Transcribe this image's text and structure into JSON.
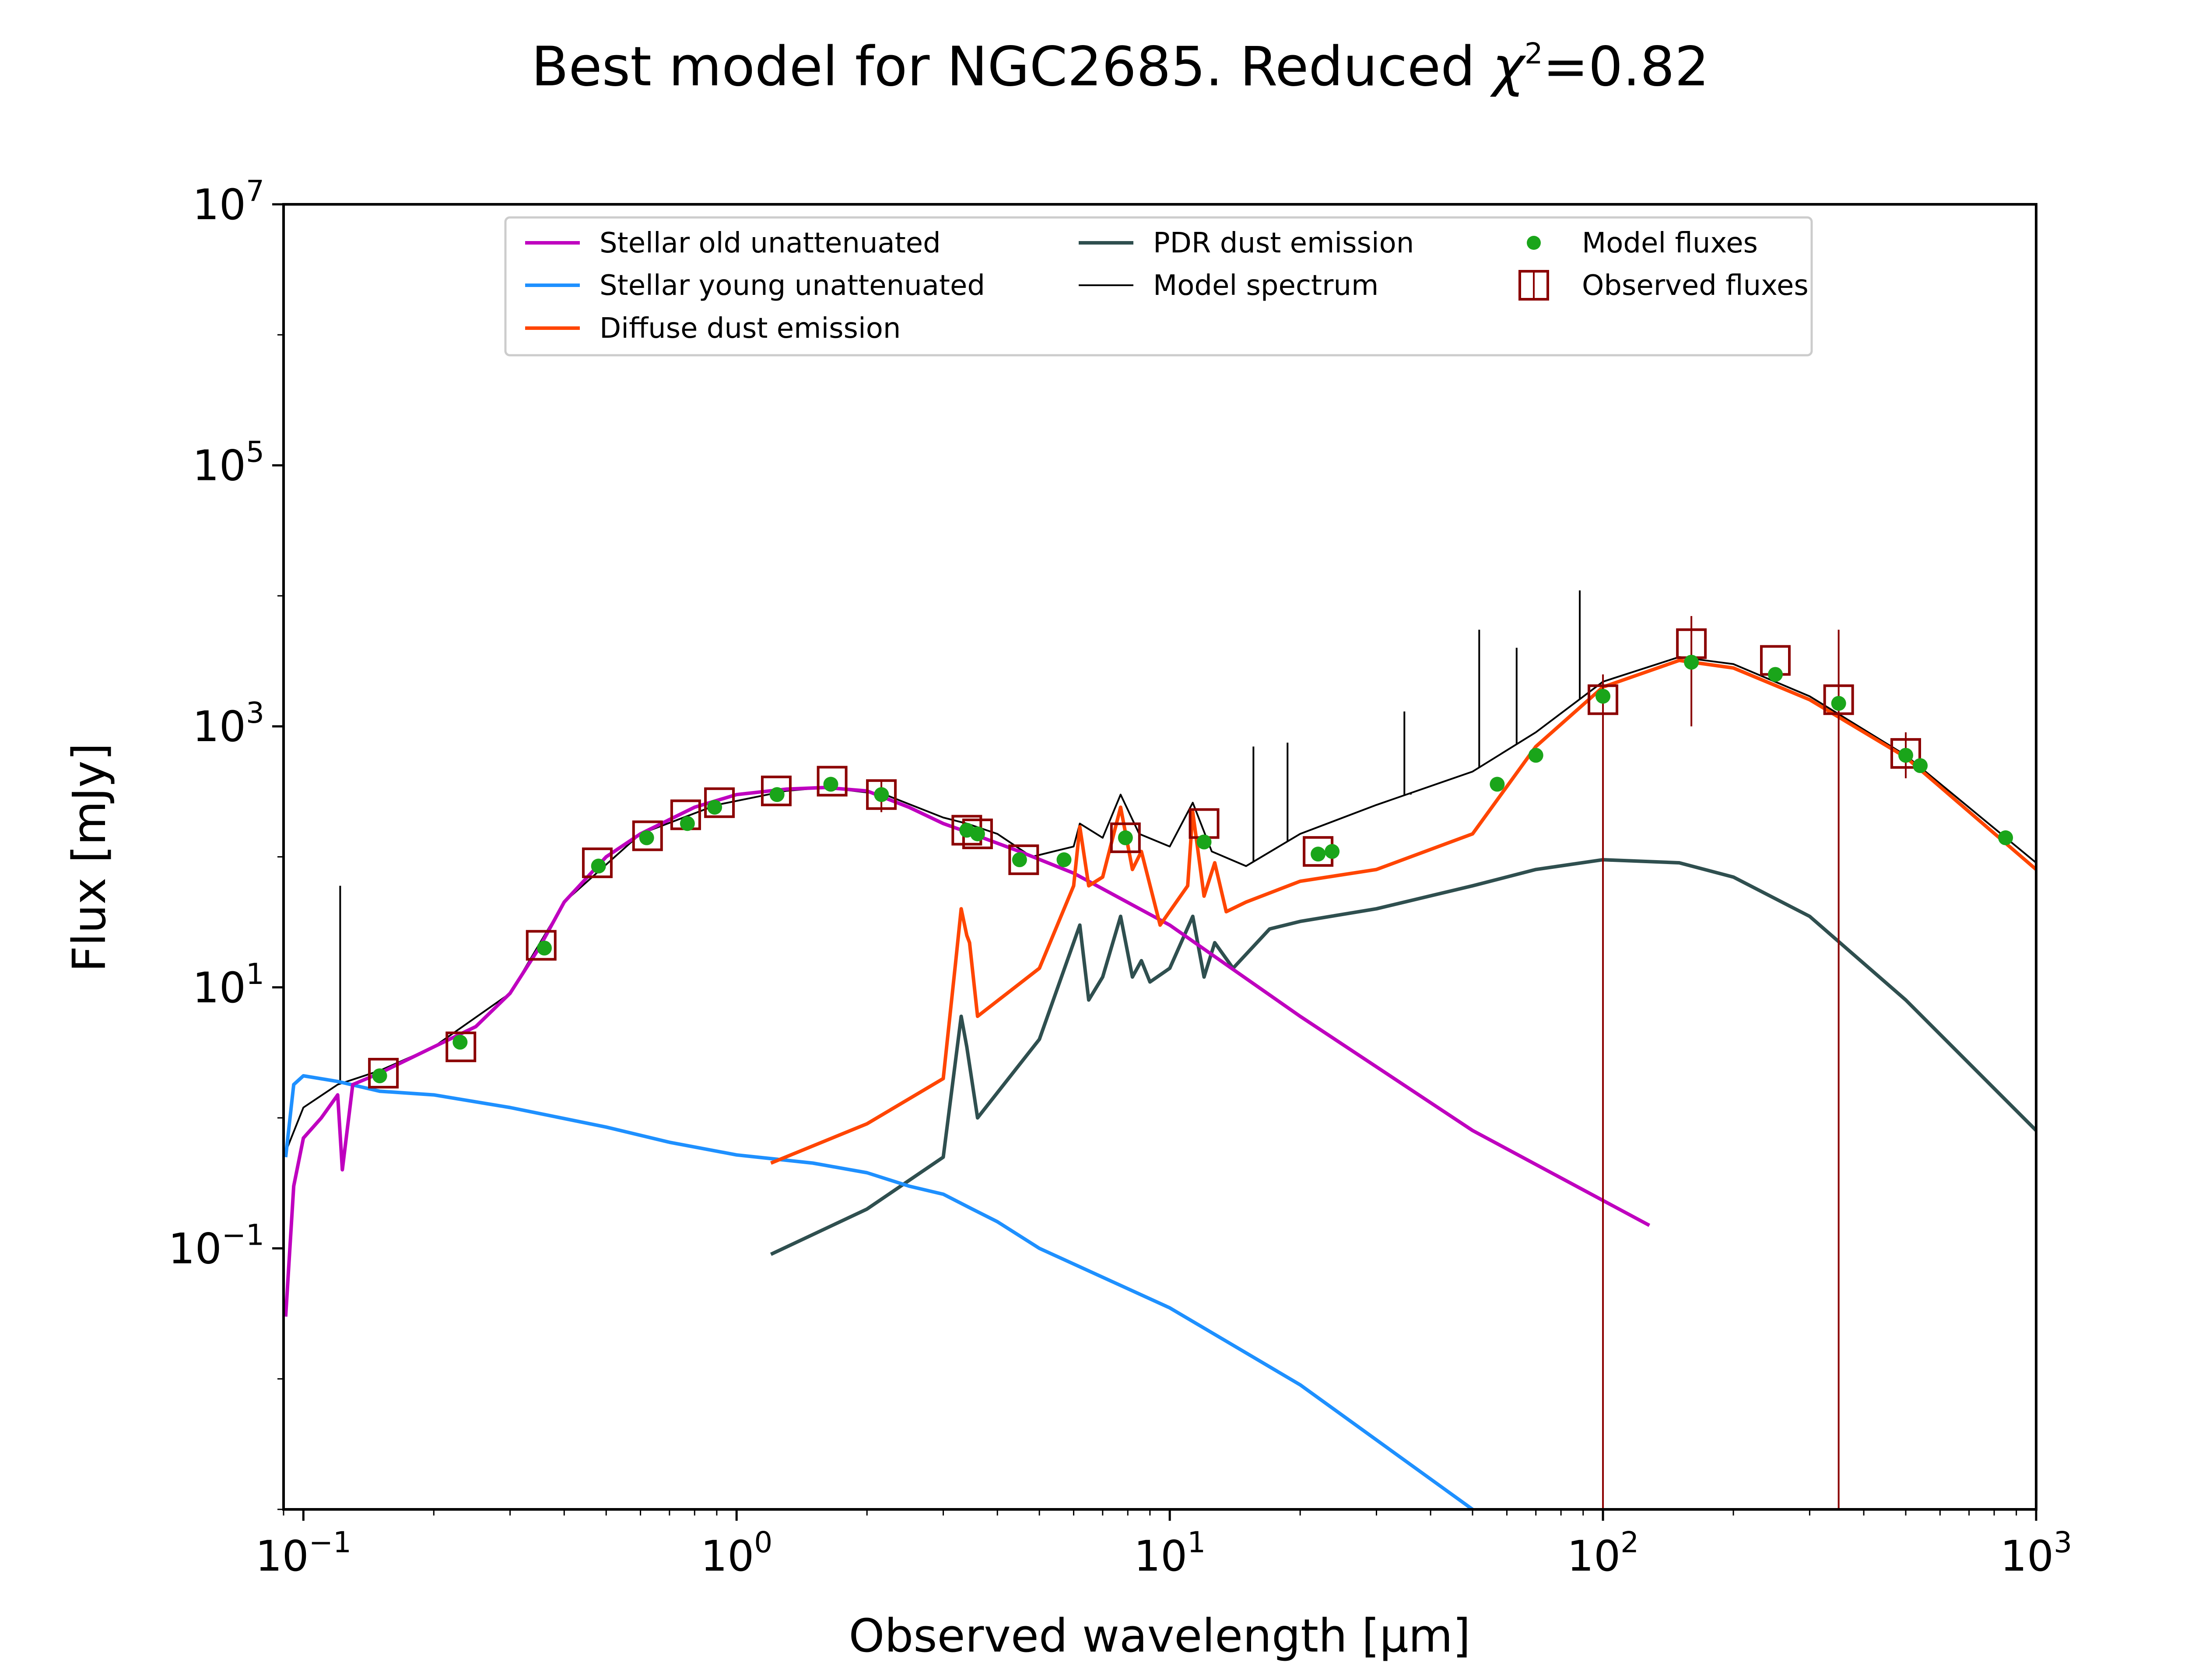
{
  "chart_data": {
    "type": "line",
    "title": "Best model for NGC2685. Reduced χ²=0.82",
    "title_parts": {
      "prefix": "Best model for NGC2685. Reduced ",
      "chi": "χ",
      "sup": "2",
      "suffix": "=0.82"
    },
    "xlabel": "Observed wavelength [μm]",
    "ylabel": "Flux [mJy]",
    "xscale": "log",
    "yscale": "log",
    "xlim": [
      0.09,
      1000
    ],
    "ylim": [
      0.001,
      10000000
    ],
    "grid": false,
    "legend_position": "top-center",
    "x_ticks": [
      {
        "value": 0.1,
        "base": "10",
        "exp": "−1"
      },
      {
        "value": 1,
        "base": "10",
        "exp": "0"
      },
      {
        "value": 10,
        "base": "10",
        "exp": "1"
      },
      {
        "value": 100,
        "base": "10",
        "exp": "2"
      },
      {
        "value": 1000,
        "base": "10",
        "exp": "3"
      }
    ],
    "y_ticks": [
      {
        "value": 0.1,
        "base": "10",
        "exp": "−1"
      },
      {
        "value": 10,
        "base": "10",
        "exp": "1"
      },
      {
        "value": 1000,
        "base": "10",
        "exp": "3"
      },
      {
        "value": 100000,
        "base": "10",
        "exp": "5"
      },
      {
        "value": 10000000,
        "base": "10",
        "exp": "7"
      }
    ],
    "legend": [
      {
        "label": "Stellar old unattenuated",
        "kind": "line",
        "color": "#bf00bf"
      },
      {
        "label": "Stellar young unattenuated",
        "kind": "line",
        "color": "#1e90ff"
      },
      {
        "label": "Diffuse dust emission",
        "kind": "line",
        "color": "#ff4500"
      },
      {
        "label": "PDR dust emission",
        "kind": "line",
        "color": "#2f4f4f"
      },
      {
        "label": "Model spectrum",
        "kind": "line",
        "color": "#000000"
      },
      {
        "label": "Model fluxes",
        "kind": "dot",
        "color": "#1aa51a"
      },
      {
        "label": "Observed fluxes",
        "kind": "square",
        "color": "#8b0000"
      }
    ],
    "series": [
      {
        "name": "Stellar old unattenuated",
        "color": "#bf00bf",
        "x": [
          0.091,
          0.095,
          0.1,
          0.11,
          0.12,
          0.123,
          0.13,
          0.15,
          0.2,
          0.25,
          0.3,
          0.35,
          0.4,
          0.5,
          0.6,
          0.8,
          1.0,
          1.3,
          1.6,
          2.0,
          2.5,
          3.0,
          3.5,
          4.5,
          6,
          10,
          20,
          50,
          128
        ],
        "y": [
          0.03,
          0.3,
          0.7,
          1.0,
          1.5,
          0.4,
          1.8,
          2.2,
          3.5,
          5,
          9,
          20,
          45,
          100,
          150,
          240,
          300,
          330,
          340,
          320,
          240,
          180,
          150,
          110,
          75,
          30,
          6,
          0.8,
          0.15
        ]
      },
      {
        "name": "Stellar young unattenuated",
        "color": "#1e90ff",
        "x": [
          0.091,
          0.095,
          0.1,
          0.12,
          0.15,
          0.2,
          0.3,
          0.5,
          0.7,
          1.0,
          1.5,
          2.0,
          2.5,
          3.0,
          3.5,
          4.0,
          5.0,
          10,
          20,
          50
        ],
        "y": [
          0.5,
          1.8,
          2.1,
          1.9,
          1.6,
          1.5,
          1.2,
          0.85,
          0.65,
          0.52,
          0.45,
          0.38,
          0.3,
          0.26,
          0.2,
          0.16,
          0.1,
          0.035,
          0.009,
          0.001
        ]
      },
      {
        "name": "Diffuse dust emission",
        "color": "#ff4500",
        "x": [
          1.2,
          2.0,
          3.0,
          3.2,
          3.3,
          3.4,
          3.45,
          3.6,
          5.0,
          6.0,
          6.2,
          6.5,
          7.0,
          7.7,
          8.2,
          8.6,
          9.5,
          11.0,
          11.3,
          12.0,
          12.7,
          13.5,
          15,
          20,
          30,
          50,
          70,
          100,
          150,
          200,
          300,
          500,
          1000
        ],
        "y": [
          0.45,
          0.9,
          2.0,
          15,
          40,
          25,
          22,
          6,
          14,
          60,
          170,
          60,
          70,
          240,
          80,
          110,
          30,
          60,
          220,
          50,
          90,
          38,
          45,
          65,
          80,
          150,
          700,
          2000,
          3200,
          2800,
          1600,
          580,
          80
        ]
      },
      {
        "name": "PDR dust emission",
        "color": "#2f4f4f",
        "x": [
          1.2,
          2.0,
          3.0,
          3.3,
          3.4,
          3.6,
          5.0,
          6.2,
          6.5,
          7.0,
          7.7,
          8.2,
          8.6,
          9.0,
          10,
          11.3,
          12.0,
          12.7,
          14,
          17,
          20,
          30,
          50,
          70,
          100,
          150,
          200,
          300,
          500,
          1000
        ],
        "y": [
          0.09,
          0.2,
          0.5,
          6,
          3.5,
          1.0,
          4,
          30,
          8,
          12,
          35,
          12,
          16,
          11,
          14,
          35,
          12,
          22,
          14,
          28,
          32,
          40,
          60,
          80,
          95,
          90,
          70,
          35,
          8,
          0.8
        ]
      },
      {
        "name": "Model spectrum",
        "color": "#000000",
        "x": [
          0.09,
          0.1,
          0.12,
          0.15,
          0.2,
          0.3,
          0.4,
          0.6,
          0.9,
          1.3,
          1.6,
          2.2,
          3.0,
          3.4,
          4.0,
          4.8,
          6,
          6.2,
          7,
          7.7,
          8.5,
          10,
          11.3,
          12.5,
          15,
          20,
          30,
          50,
          70,
          100,
          150,
          200,
          300,
          500,
          1000
        ],
        "y": [
          0.5,
          1.2,
          1.8,
          2.3,
          3.5,
          9,
          45,
          150,
          250,
          320,
          340,
          300,
          200,
          180,
          150,
          100,
          120,
          180,
          140,
          300,
          150,
          120,
          260,
          110,
          85,
          150,
          250,
          450,
          900,
          2200,
          3400,
          3000,
          1700,
          600,
          90
        ]
      }
    ],
    "model_fluxes": {
      "x": [
        0.15,
        0.23,
        0.36,
        0.48,
        0.62,
        0.77,
        0.89,
        1.24,
        1.65,
        2.16,
        3.4,
        3.6,
        4.5,
        5.7,
        7.9,
        12,
        22,
        23.7,
        57,
        70,
        100,
        160,
        250,
        350,
        500,
        540,
        850
      ],
      "y": [
        2.1,
        3.8,
        20,
        85,
        140,
        180,
        240,
        300,
        360,
        300,
        160,
        150,
        95,
        95,
        140,
        130,
        105,
        110,
        360,
        600,
        1700,
        3100,
        2500,
        1500,
        600,
        500,
        140
      ]
    },
    "observed_fluxes": {
      "x": [
        0.153,
        0.231,
        0.354,
        0.477,
        0.623,
        0.763,
        0.913,
        1.235,
        1.662,
        2.159,
        3.4,
        3.6,
        4.6,
        7.9,
        12,
        22,
        100,
        160,
        250,
        350,
        500
      ],
      "y": [
        2.2,
        3.5,
        21,
        90,
        145,
        210,
        260,
        320,
        380,
        300,
        160,
        150,
        95,
        140,
        180,
        110,
        1600,
        4300,
        3200,
        1600,
        620
      ]
    },
    "observed_errorbars": [
      {
        "x": 100,
        "low": 0.001,
        "high": 2500
      },
      {
        "x": 160,
        "low": 1000,
        "high": 7000
      },
      {
        "x": 350,
        "low": 0.001,
        "high": 5500
      },
      {
        "x": 500,
        "low": 400,
        "high": 900
      },
      {
        "x": 2.159,
        "low": 220,
        "high": 380
      }
    ],
    "emission_lines": [
      {
        "x": 0.1216,
        "peak": 60
      },
      {
        "x": 15.6,
        "peak": 700
      },
      {
        "x": 18.7,
        "peak": 750
      },
      {
        "x": 34.8,
        "peak": 1300
      },
      {
        "x": 51.8,
        "peak": 5500
      },
      {
        "x": 63.2,
        "peak": 4000
      },
      {
        "x": 88.4,
        "peak": 11000
      },
      {
        "x": 36.0,
        "peak": 300
      },
      {
        "x": 37.0,
        "peak": 320
      }
    ]
  }
}
